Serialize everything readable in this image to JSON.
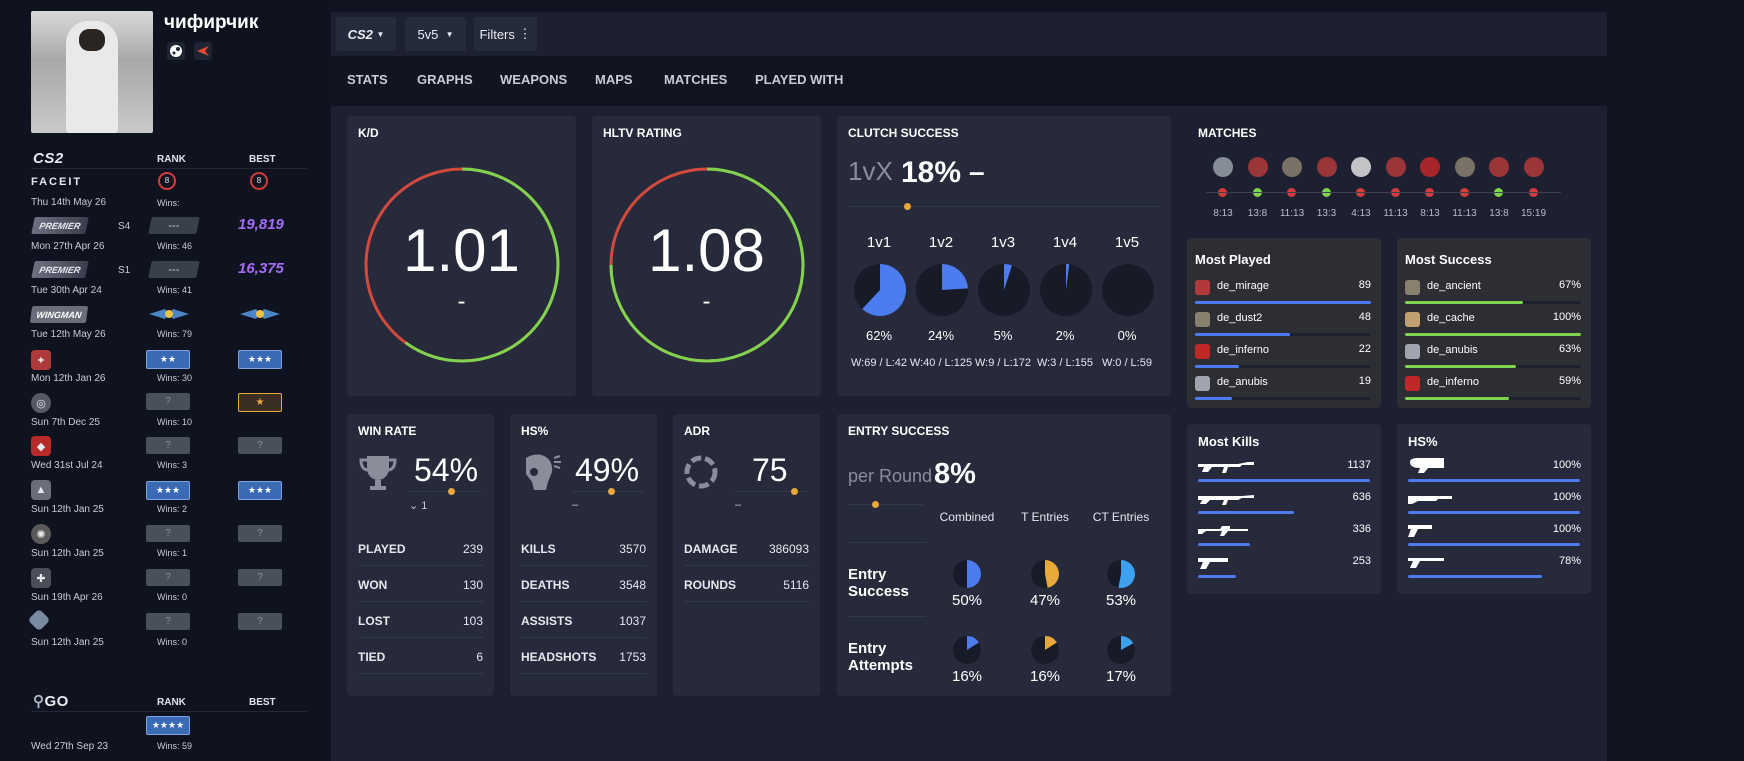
{
  "profile": {
    "username": "чифирчик",
    "icons": [
      "steam-icon",
      "faceit-icon"
    ]
  },
  "sidebar": {
    "cs2_logo": "CS2",
    "rank_header": "RANK",
    "best_header": "BEST",
    "rows": [
      {
        "service": "FACEIT",
        "date": "Thu 14th May 26",
        "rank": "8",
        "best": "8",
        "wins": "Wins:"
      },
      {
        "service": "PREMIER",
        "season": "S4",
        "date": "Mon 27th Apr 26",
        "rank": "---",
        "best": "19,819",
        "wins": "Wins: 46"
      },
      {
        "service": "PREMIER",
        "season": "S1",
        "date": "Tue 30th Apr 24",
        "rank": "---",
        "best": "16,375",
        "wins": "Wins: 41"
      },
      {
        "service": "WINGMAN",
        "date": "Tue 12th May 26",
        "rank": "wingman",
        "best": "wingman",
        "wins": "Wins: 79"
      },
      {
        "service": "map",
        "date": "Mon 12th Jan 26",
        "rank": "★★",
        "best": "★★★",
        "wins": "Wins: 30"
      },
      {
        "service": "map",
        "date": "Sun 7th Dec 25",
        "rank": "?",
        "best": "★",
        "wins": "Wins: 10"
      },
      {
        "service": "map",
        "date": "Wed 31st Jul 24",
        "rank": "?",
        "best": "?",
        "wins": "Wins: 3"
      },
      {
        "service": "map",
        "date": "Sun 12th Jan 25",
        "rank": "★★★",
        "best": "★★★",
        "wins": "Wins: 2"
      },
      {
        "service": "map",
        "date": "Sun 12th Jan 25",
        "rank": "?",
        "best": "?",
        "wins": "Wins: 1"
      },
      {
        "service": "map",
        "date": "Sun 19th Apr 26",
        "rank": "?",
        "best": "?",
        "wins": "Wins: 0"
      },
      {
        "service": "map",
        "date": "Sun 12th Jan 25",
        "rank": "?",
        "best": "?",
        "wins": "Wins: 0"
      }
    ],
    "go_logo": "GO",
    "go_rank_header": "RANK",
    "go_best_header": "BEST",
    "go_row": {
      "date": "Wed 27th Sep 23",
      "rank": "★★★★",
      "wins": "Wins: 59"
    }
  },
  "toolbar": {
    "game": "CS2",
    "mode": "5v5",
    "filters": "Filters"
  },
  "tabs": [
    "STATS",
    "GRAPHS",
    "WEAPONS",
    "MAPS",
    "MATCHES",
    "PLAYED WITH"
  ],
  "kd": {
    "title": "K/D",
    "value": "1.01",
    "sub": "-",
    "fraction": 0.6
  },
  "hltv": {
    "title": "HLTV RATING",
    "value": "1.08",
    "sub": "-",
    "fraction": 0.75
  },
  "clutch": {
    "title": "CLUTCH SUCCESS",
    "prefix": "1vX",
    "value": "18%",
    "suffix": "–",
    "items": [
      {
        "label": "1v1",
        "pct": "62%",
        "frac": 0.62,
        "wl": "W:69 / L:42"
      },
      {
        "label": "1v2",
        "pct": "24%",
        "frac": 0.24,
        "wl": "W:40 / L:125"
      },
      {
        "label": "1v3",
        "pct": "5%",
        "frac": 0.05,
        "wl": "W:9 / L:172"
      },
      {
        "label": "1v4",
        "pct": "2%",
        "frac": 0.02,
        "wl": "W:3 / L:155"
      },
      {
        "label": "1v5",
        "pct": "0%",
        "frac": 0,
        "wl": "W:0 / L:59"
      }
    ]
  },
  "matches": {
    "title": "MATCHES",
    "results": [
      "loss",
      "win",
      "loss",
      "win",
      "loss",
      "loss",
      "loss",
      "loss",
      "win",
      "loss"
    ],
    "scores": [
      "8:13",
      "13:8",
      "11:13",
      "13:3",
      "4:13",
      "11:13",
      "8:13",
      "11:13",
      "13:8",
      "15:19"
    ]
  },
  "most_played": {
    "title": "Most Played",
    "rows": [
      {
        "map": "de_mirage",
        "value": "89",
        "frac": 1.0
      },
      {
        "map": "de_dust2",
        "value": "48",
        "frac": 0.54
      },
      {
        "map": "de_inferno",
        "value": "22",
        "frac": 0.25
      },
      {
        "map": "de_anubis",
        "value": "19",
        "frac": 0.21
      }
    ]
  },
  "most_success": {
    "title": "Most Success",
    "rows": [
      {
        "map": "de_ancient",
        "value": "67%",
        "frac": 0.67
      },
      {
        "map": "de_cache",
        "value": "100%",
        "frac": 1.0
      },
      {
        "map": "de_anubis",
        "value": "63%",
        "frac": 0.63
      },
      {
        "map": "de_inferno",
        "value": "59%",
        "frac": 0.59
      }
    ]
  },
  "win_rate": {
    "title": "WIN RATE",
    "value": "54%",
    "sub": "1",
    "stats": [
      {
        "label": "PLAYED",
        "value": "239"
      },
      {
        "label": "WON",
        "value": "130"
      },
      {
        "label": "LOST",
        "value": "103"
      },
      {
        "label": "TIED",
        "value": "6"
      }
    ]
  },
  "hs": {
    "title": "HS%",
    "value": "49%",
    "sub": "–",
    "stats": [
      {
        "label": "KILLS",
        "value": "3570"
      },
      {
        "label": "DEATHS",
        "value": "3548"
      },
      {
        "label": "ASSISTS",
        "value": "1037"
      },
      {
        "label": "HEADSHOTS",
        "value": "1753"
      }
    ]
  },
  "adr": {
    "title": "ADR",
    "value": "75",
    "sub": "–",
    "stats": [
      {
        "label": "DAMAGE",
        "value": "386093"
      },
      {
        "label": "ROUNDS",
        "value": "5116"
      }
    ]
  },
  "entry": {
    "title": "ENTRY SUCCESS",
    "prefix": "per Round",
    "value": "8%",
    "columns": [
      "Combined",
      "T Entries",
      "CT Entries"
    ],
    "rows": [
      {
        "label": "Entry Success",
        "values": [
          {
            "pct": "50%",
            "frac": 0.5,
            "color": "#4c7cf0"
          },
          {
            "pct": "47%",
            "frac": 0.47,
            "color": "#e8a83c"
          },
          {
            "pct": "53%",
            "frac": 0.53,
            "color": "#3fa0f0"
          }
        ]
      },
      {
        "label": "Entry Attempts",
        "values": [
          {
            "pct": "16%",
            "frac": 0.16,
            "color": "#4c7cf0"
          },
          {
            "pct": "16%",
            "frac": 0.16,
            "color": "#e8a83c"
          },
          {
            "pct": "17%",
            "frac": 0.17,
            "color": "#3fa0f0"
          }
        ]
      }
    ]
  },
  "most_kills": {
    "title": "Most Kills",
    "rows": [
      {
        "weapon": "ak47-icon",
        "value": "1137",
        "frac": 1.0
      },
      {
        "weapon": "m4a1-icon",
        "value": "636",
        "frac": 0.56
      },
      {
        "weapon": "awp-icon",
        "value": "336",
        "frac": 0.3
      },
      {
        "weapon": "glock-icon",
        "value": "253",
        "frac": 0.22
      }
    ]
  },
  "hs_weapons": {
    "title": "HS%",
    "rows": [
      {
        "weapon": "p90-icon",
        "value": "100%",
        "frac": 1.0
      },
      {
        "weapon": "nova-icon",
        "value": "100%",
        "frac": 1.0
      },
      {
        "weapon": "deagle-icon",
        "value": "100%",
        "frac": 1.0
      },
      {
        "weapon": "usp-icon",
        "value": "78%",
        "frac": 0.78
      }
    ]
  },
  "colors": {
    "green": "#7fd34e",
    "red": "#d43c3c",
    "blue": "#4c7cf0",
    "orange": "#e8a83c"
  }
}
